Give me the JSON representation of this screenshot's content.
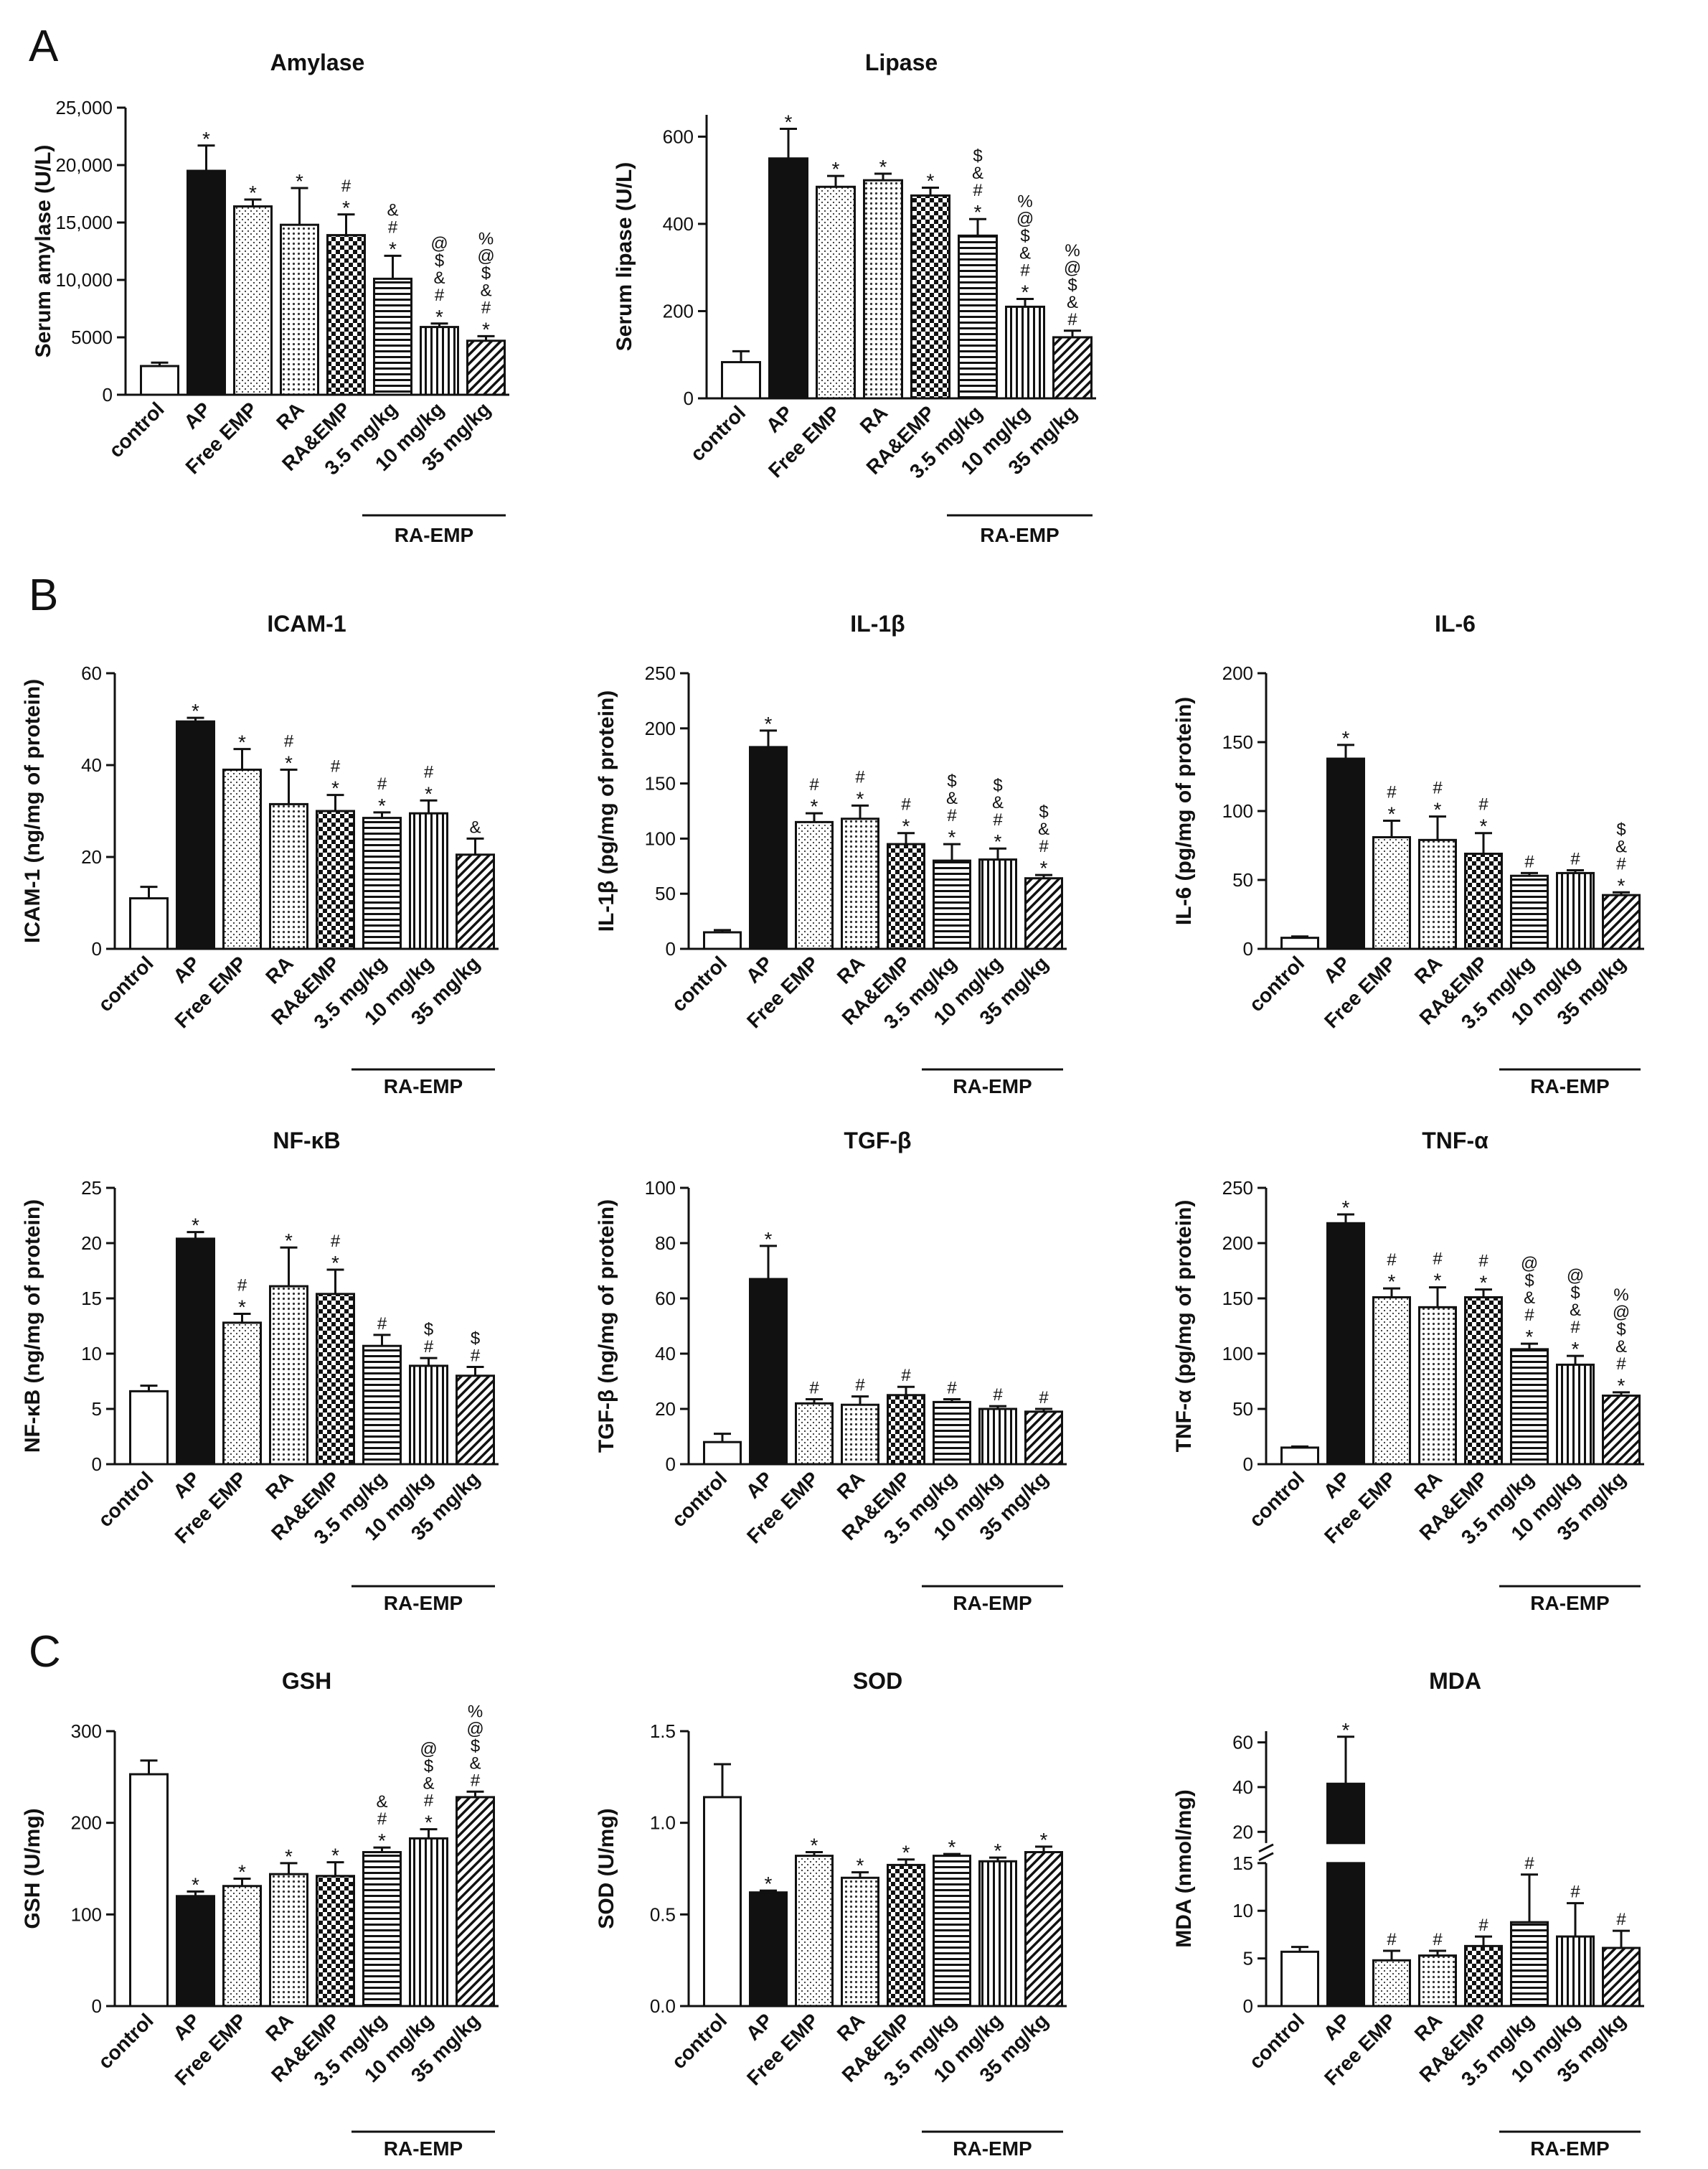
{
  "panel_labels": [
    "A",
    "B",
    "C"
  ],
  "group_label": "RA-EMP",
  "categories": [
    "control",
    "AP",
    "Free EMP",
    "RA",
    "RA&EMP",
    "3.5 mg/kg",
    "10 mg/kg",
    "35 mg/kg"
  ],
  "chart_data": [
    {
      "type": "bar",
      "title": "Amylase",
      "ylabel": "Serum amylase (U/L)",
      "ylim": [
        0,
        25000
      ],
      "yticks": [
        0,
        5000,
        10000,
        15000,
        20000,
        25000
      ],
      "yticklabels": [
        "0",
        "5000",
        "10,000",
        "15,000",
        "20,000",
        "25,000"
      ],
      "values": [
        2500,
        19500,
        16400,
        14800,
        13900,
        10100,
        5900,
        4700
      ],
      "errors": [
        300,
        2200,
        600,
        3200,
        1800,
        2000,
        300,
        400
      ],
      "annotations": [
        [],
        [
          "*"
        ],
        [
          "*"
        ],
        [
          "*"
        ],
        [
          "*",
          "#"
        ],
        [
          "*",
          "#",
          "&"
        ],
        [
          "*",
          "#",
          "&",
          "$",
          "@"
        ],
        [
          "*",
          "#",
          "&",
          "$",
          "@",
          "%"
        ]
      ]
    },
    {
      "type": "bar",
      "title": "Lipase",
      "ylabel": "Serum lipase (U/L)",
      "ylim": [
        0,
        650
      ],
      "yticks": [
        0,
        200,
        400,
        600
      ],
      "yticklabels": [
        "0",
        "200",
        "400",
        "600"
      ],
      "values": [
        83,
        550,
        485,
        500,
        465,
        373,
        210,
        140
      ],
      "errors": [
        25,
        68,
        25,
        15,
        18,
        38,
        18,
        15
      ],
      "annotations": [
        [],
        [
          "*"
        ],
        [
          "*"
        ],
        [
          "*"
        ],
        [
          "*"
        ],
        [
          "*",
          "#",
          "&",
          "$"
        ],
        [
          "*",
          "#",
          "&",
          "$",
          "@",
          "%"
        ],
        [
          "#",
          "&",
          "$",
          "@",
          "%"
        ]
      ]
    },
    {
      "type": "bar",
      "title": "ICAM-1",
      "ylabel": "ICAM-1 (ng/mg of protein)",
      "ylim": [
        0,
        60
      ],
      "yticks": [
        0,
        20,
        40,
        60
      ],
      "yticklabels": [
        "0",
        "20",
        "40",
        "60"
      ],
      "values": [
        11,
        49.5,
        39,
        31.5,
        30,
        28.5,
        29.5,
        20.5
      ],
      "errors": [
        2.5,
        0.8,
        4.5,
        7.5,
        3.5,
        1.2,
        2.8,
        3.5
      ],
      "annotations": [
        [],
        [
          "*"
        ],
        [
          "*"
        ],
        [
          "*",
          "#"
        ],
        [
          "*",
          "#"
        ],
        [
          "*",
          "#"
        ],
        [
          "*",
          "#"
        ],
        [
          "&"
        ]
      ]
    },
    {
      "type": "bar",
      "title": "IL-1β",
      "ylabel": "IL-1β  (pg/mg of protein)",
      "ylim": [
        0,
        250
      ],
      "yticks": [
        0,
        50,
        100,
        150,
        200,
        250
      ],
      "yticklabels": [
        "0",
        "50",
        "100",
        "150",
        "200",
        "250"
      ],
      "values": [
        15,
        183,
        115,
        118,
        95,
        80,
        81,
        64
      ],
      "errors": [
        2,
        15,
        8,
        12,
        10,
        15,
        10,
        3
      ],
      "annotations": [
        [],
        [
          "*"
        ],
        [
          "*",
          "#"
        ],
        [
          "*",
          "#"
        ],
        [
          "*",
          "#"
        ],
        [
          "*",
          "#",
          "&",
          "$"
        ],
        [
          "*",
          "#",
          "&",
          "$"
        ],
        [
          "*",
          "#",
          "&",
          "$"
        ]
      ]
    },
    {
      "type": "bar",
      "title": "IL-6",
      "ylabel": "IL-6 (pg/mg of protein)",
      "ylim": [
        0,
        200
      ],
      "yticks": [
        0,
        50,
        100,
        150,
        200
      ],
      "yticklabels": [
        "0",
        "50",
        "100",
        "150",
        "200"
      ],
      "values": [
        8,
        138,
        81,
        79,
        69,
        53,
        55,
        39
      ],
      "errors": [
        1,
        10,
        12,
        17,
        15,
        2,
        2,
        2
      ],
      "annotations": [
        [],
        [
          "*"
        ],
        [
          "*",
          "#"
        ],
        [
          "*",
          "#"
        ],
        [
          "*",
          "#"
        ],
        [
          "#"
        ],
        [
          "#"
        ],
        [
          "*",
          "#",
          "&",
          "$"
        ]
      ]
    },
    {
      "type": "bar",
      "title": "NF-κB",
      "ylabel": "NF-κB (ng/mg of protein)",
      "ylim": [
        0,
        25
      ],
      "yticks": [
        0,
        5,
        10,
        15,
        20,
        25
      ],
      "yticklabels": [
        "0",
        "5",
        "10",
        "15",
        "20",
        "25"
      ],
      "values": [
        6.6,
        20.4,
        12.8,
        16.1,
        15.4,
        10.7,
        8.9,
        8.0
      ],
      "errors": [
        0.5,
        0.6,
        0.8,
        3.5,
        2.2,
        1.0,
        0.7,
        0.8
      ],
      "annotations": [
        [],
        [
          "*"
        ],
        [
          "*",
          "#"
        ],
        [
          "*"
        ],
        [
          "*",
          "#"
        ],
        [
          "#"
        ],
        [
          "#",
          "$"
        ],
        [
          "#",
          "$"
        ]
      ]
    },
    {
      "type": "bar",
      "title": "TGF-β",
      "ylabel": "TGF-β (ng/mg of protein)",
      "ylim": [
        0,
        100
      ],
      "yticks": [
        0,
        20,
        40,
        60,
        80,
        100
      ],
      "yticklabels": [
        "0",
        "20",
        "40",
        "60",
        "80",
        "100"
      ],
      "values": [
        8,
        67,
        22,
        21.5,
        25,
        22.5,
        20,
        19
      ],
      "errors": [
        3,
        12,
        1.5,
        3,
        3,
        1,
        1,
        1
      ],
      "annotations": [
        [],
        [
          "*"
        ],
        [
          "#"
        ],
        [
          "#"
        ],
        [
          "#"
        ],
        [
          "#"
        ],
        [
          "#"
        ],
        [
          "#"
        ]
      ]
    },
    {
      "type": "bar",
      "title": "TNF-α",
      "ylabel": "TNF-α  (pg/mg of protein)",
      "ylim": [
        0,
        250
      ],
      "yticks": [
        0,
        50,
        100,
        150,
        200,
        250
      ],
      "yticklabels": [
        "0",
        "50",
        "100",
        "150",
        "200",
        "250"
      ],
      "values": [
        15,
        218,
        151,
        142,
        151,
        104,
        90,
        62
      ],
      "errors": [
        1,
        8,
        8,
        18,
        7,
        5,
        8,
        3
      ],
      "annotations": [
        [],
        [
          "*"
        ],
        [
          "*",
          "#"
        ],
        [
          "*",
          "#"
        ],
        [
          "*",
          "#"
        ],
        [
          "*",
          "#",
          "&",
          "$",
          "@"
        ],
        [
          "*",
          "#",
          "&",
          "$",
          "@"
        ],
        [
          "*",
          "#",
          "&",
          "$",
          "@",
          "%"
        ]
      ]
    },
    {
      "type": "bar",
      "title": "GSH",
      "ylabel": "GSH (U/mg)",
      "ylim": [
        0,
        300
      ],
      "yticks": [
        0,
        100,
        200,
        300
      ],
      "yticklabels": [
        "0",
        "100",
        "200",
        "300"
      ],
      "values": [
        253,
        120,
        131,
        144,
        142,
        168,
        183,
        228
      ],
      "errors": [
        15,
        5,
        8,
        12,
        15,
        5,
        10,
        6
      ],
      "annotations": [
        [],
        [
          "*"
        ],
        [
          "*"
        ],
        [
          "*"
        ],
        [
          "*"
        ],
        [
          "*",
          "#",
          "&"
        ],
        [
          "*",
          "#",
          "&",
          "$",
          "@"
        ],
        [
          "#",
          "&",
          "$",
          "@",
          "%"
        ]
      ]
    },
    {
      "type": "bar",
      "title": "SOD",
      "ylabel": "SOD (U/mg)",
      "ylim": [
        0,
        1.5
      ],
      "yticks": [
        0,
        0.5,
        1.0,
        1.5
      ],
      "yticklabels": [
        "0.0",
        "0.5",
        "1.0",
        "1.5"
      ],
      "values": [
        1.14,
        0.62,
        0.82,
        0.7,
        0.77,
        0.82,
        0.79,
        0.84
      ],
      "errors": [
        0.18,
        0.01,
        0.02,
        0.03,
        0.03,
        0.01,
        0.02,
        0.03
      ],
      "annotations": [
        [],
        [
          "*"
        ],
        [
          "*"
        ],
        [
          "*"
        ],
        [
          "*"
        ],
        [
          "*"
        ],
        [
          "*"
        ],
        [
          "*"
        ]
      ]
    },
    {
      "type": "bar",
      "title": "MDA",
      "ylabel": "MDA (nmol/mg)",
      "axis_break": true,
      "ylim_lower": [
        0,
        15
      ],
      "yticks_lower": [
        0,
        5,
        10,
        15
      ],
      "ylim_upper": [
        15,
        65
      ],
      "yticks_upper": [
        20,
        40,
        60
      ],
      "yticklabels": [
        "0",
        "5",
        "10",
        "15",
        "20",
        "40",
        "60"
      ],
      "values": [
        5.7,
        41.5,
        4.8,
        5.3,
        6.3,
        8.8,
        7.3,
        6.1
      ],
      "errors": [
        0.5,
        21,
        1,
        0.5,
        1,
        5,
        3.5,
        1.8
      ],
      "annotations": [
        [],
        [
          "*"
        ],
        [
          "#"
        ],
        [
          "#"
        ],
        [
          "#"
        ],
        [
          "#"
        ],
        [
          "#"
        ],
        [
          "#"
        ]
      ]
    }
  ]
}
